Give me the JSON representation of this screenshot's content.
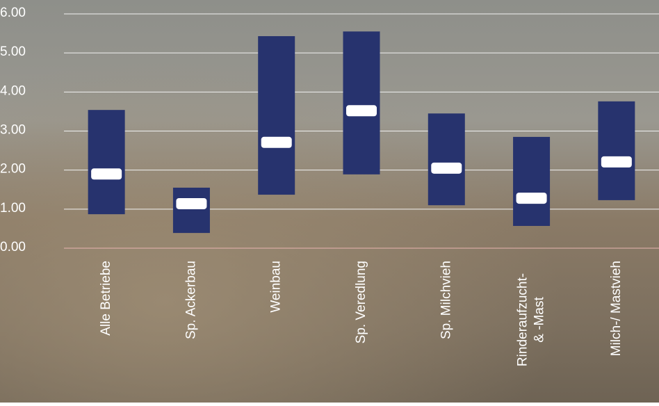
{
  "chart_data": {
    "type": "range_bar",
    "categories": [
      "Alle Betriebe",
      "Sp. Ackerbau",
      "Weinbau",
      "Sp. Veredlung",
      "Sp. Milchvieh",
      "Rinderaufzucht-\n& -Mast",
      "Milch-/ Mastvieh"
    ],
    "series": [
      {
        "name": "low",
        "color": "#27336e",
        "values": [
          0.87,
          0.39,
          1.37,
          1.89,
          1.1,
          0.57,
          1.23
        ]
      },
      {
        "name": "high",
        "color": "#27336e",
        "values": [
          3.54,
          1.55,
          5.43,
          5.55,
          3.45,
          2.85,
          3.76
        ]
      },
      {
        "name": "median",
        "color": "#ffffff",
        "values": [
          1.9,
          1.14,
          2.71,
          3.52,
          2.05,
          1.28,
          2.21
        ]
      }
    ],
    "ylim": [
      0,
      6
    ],
    "yticks": [
      {
        "value": 0,
        "label": "0.00"
      },
      {
        "value": 1,
        "label": "1.00"
      },
      {
        "value": 2,
        "label": "2.00"
      },
      {
        "value": 3,
        "label": "3.00"
      },
      {
        "value": 4,
        "label": "4.00"
      },
      {
        "value": 5,
        "label": "5.00"
      },
      {
        "value": 6,
        "label": "6.00"
      }
    ],
    "grid": true
  }
}
